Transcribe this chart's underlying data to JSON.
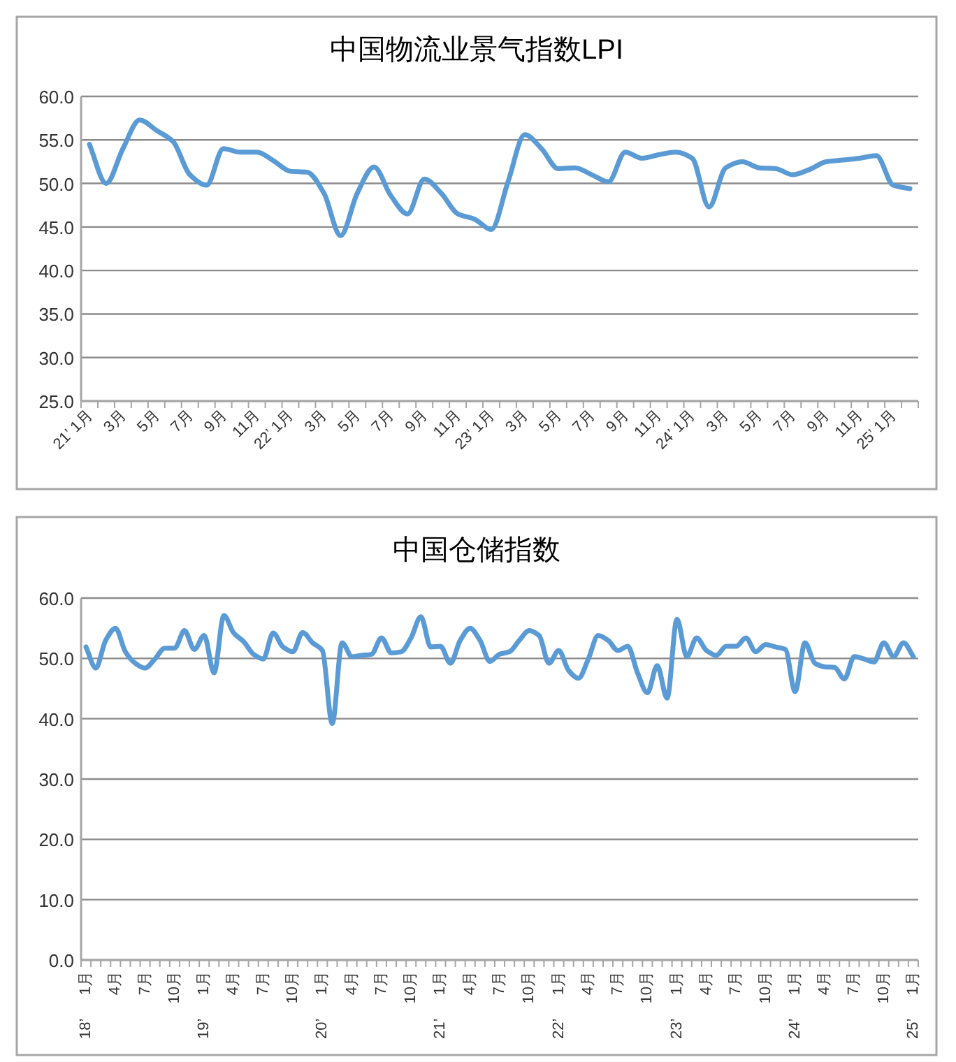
{
  "chart_data": [
    {
      "type": "line",
      "title": "中国物流业景气指数LPI",
      "color": "#5b9bd5",
      "grid": "y",
      "categories": [
        "21’ 1月",
        null,
        "3月",
        null,
        "5月",
        null,
        "7月",
        null,
        "9月",
        null,
        "11月",
        null,
        "22’ 1月",
        null,
        "3月",
        null,
        "5月",
        null,
        "7月",
        null,
        "9月",
        null,
        "11月",
        null,
        "23’ 1月",
        null,
        "3月",
        null,
        "5月",
        null,
        "7月",
        null,
        "9月",
        null,
        "11月",
        null,
        "24’ 1月",
        null,
        "3月",
        null,
        "5月",
        null,
        "7月",
        null,
        "9月",
        null,
        "11月",
        null,
        "25’ 1月",
        null
      ],
      "values": [
        54.5,
        50.0,
        54.0,
        57.3,
        56.1,
        54.8,
        51.0,
        49.8,
        54.0,
        53.6,
        53.6,
        52.6,
        51.4,
        51.3,
        48.9,
        44.0,
        48.9,
        51.9,
        48.6,
        46.5,
        50.5,
        48.9,
        46.5,
        45.9,
        44.7,
        50.2,
        55.6,
        54.0,
        51.7,
        51.8,
        51.0,
        50.2,
        53.6,
        52.9,
        53.3,
        53.6,
        52.9,
        47.3,
        51.8,
        52.5,
        51.8,
        51.7,
        51.0,
        51.6,
        52.5,
        52.7,
        52.9,
        53.2,
        49.8,
        49.4
      ],
      "ylim": [
        25,
        60
      ],
      "yticks": [
        {
          "value": 25,
          "label": "25.0"
        },
        {
          "value": 30,
          "label": "30.0"
        },
        {
          "value": 35,
          "label": "35.0"
        },
        {
          "value": 40,
          "label": "40.0"
        },
        {
          "value": 45,
          "label": "45.0"
        },
        {
          "value": 50,
          "label": "50.0"
        },
        {
          "value": 55,
          "label": "55.0"
        },
        {
          "value": 60,
          "label": "60.0"
        }
      ]
    },
    {
      "type": "line",
      "title": "中国仓储指数",
      "color": "#5b9bd5",
      "grid": "y",
      "categories": [
        "18’ 1月",
        null,
        null,
        "4月",
        null,
        null,
        "7月",
        null,
        null,
        "10月",
        null,
        null,
        "19’ 1月",
        null,
        null,
        "4月",
        null,
        null,
        "7月",
        null,
        null,
        "10月",
        null,
        null,
        "20’ 1月",
        null,
        null,
        "4月",
        null,
        null,
        "7月",
        null,
        null,
        "10月",
        null,
        null,
        "21’ 1月",
        null,
        null,
        "4月",
        null,
        null,
        "7月",
        null,
        null,
        "10月",
        null,
        null,
        "22’ 1月",
        null,
        null,
        "4月",
        null,
        null,
        "7月",
        null,
        null,
        "10月",
        null,
        null,
        "23’ 1月",
        null,
        null,
        "4月",
        null,
        null,
        "7月",
        null,
        null,
        "10月",
        null,
        null,
        "24’ 1月",
        null,
        null,
        "4月",
        null,
        null,
        "7月",
        null,
        null,
        "10月",
        null,
        null,
        "25’ 1月"
      ],
      "values": [
        51.9,
        48.4,
        53.0,
        55.0,
        51.1,
        49.2,
        48.4,
        49.9,
        51.7,
        51.7,
        54.6,
        51.5,
        53.8,
        47.6,
        57.1,
        54.2,
        52.8,
        50.7,
        49.9,
        54.2,
        51.9,
        51.1,
        54.3,
        52.6,
        51.3,
        39.2,
        52.6,
        50.3,
        50.5,
        50.7,
        53.4,
        50.9,
        51.1,
        53.4,
        56.9,
        51.9,
        52.0,
        49.2,
        53.0,
        55.0,
        53.0,
        49.5,
        50.7,
        51.1,
        53.0,
        54.6,
        53.8,
        49.2,
        51.3,
        48.0,
        46.7,
        49.9,
        53.8,
        53.0,
        51.3,
        52.0,
        47.6,
        44.3,
        48.8,
        43.4,
        56.5,
        50.3,
        53.4,
        51.3,
        50.5,
        52.0,
        52.0,
        53.4,
        51.1,
        52.3,
        51.9,
        51.5,
        44.5,
        52.6,
        49.2,
        48.6,
        48.5,
        46.6,
        50.3,
        49.9,
        49.4,
        52.6,
        50.3,
        52.6,
        50.3
      ],
      "ylim": [
        0,
        60
      ],
      "yticks": [
        {
          "value": 0,
          "label": "0.0"
        },
        {
          "value": 10,
          "label": "10.0"
        },
        {
          "value": 20,
          "label": "20.0"
        },
        {
          "value": 30,
          "label": "30.0"
        },
        {
          "value": 40,
          "label": "40.0"
        },
        {
          "value": 50,
          "label": "50.0"
        },
        {
          "value": 60,
          "label": "60.0"
        }
      ]
    }
  ]
}
